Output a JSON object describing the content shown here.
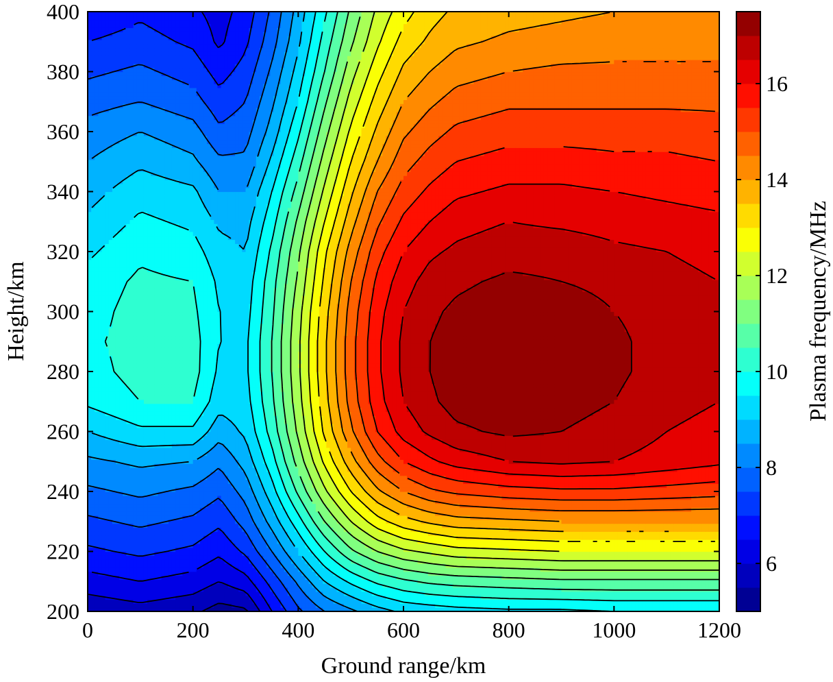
{
  "chart_data": {
    "type": "heatmap",
    "subtype": "filled contour",
    "xlabel": "Ground range/km",
    "ylabel": "Height/km",
    "colorbar_label": "Plasma frequency/MHz",
    "xlim": [
      0,
      1200
    ],
    "ylim": [
      200,
      400
    ],
    "clim": [
      5,
      17.5
    ],
    "x_ticks": [
      "0",
      "200",
      "400",
      "600",
      "800",
      "1000",
      "1200"
    ],
    "y_ticks": [
      "200",
      "220",
      "240",
      "260",
      "280",
      "300",
      "320",
      "340",
      "360",
      "380",
      "400"
    ],
    "colorbar_ticks": [
      "6",
      "8",
      "10",
      "12",
      "14",
      "16"
    ],
    "colormap": "jet",
    "contour_lines_color": "#000000",
    "contour_interval_mhz": 0.5,
    "grid": false,
    "features": {
      "peak": {
        "x": 870,
        "y": 290,
        "value": 17.3
      },
      "low_at_top_near_x250": {
        "x": 250,
        "y": 392,
        "value": 6.3
      },
      "low_at_bottom_near_x250": {
        "x": 280,
        "y": 201,
        "value": 5.3
      },
      "local_max_left": {
        "x": 120,
        "y": 292,
        "value": 10.2
      },
      "saddle": {
        "x": 250,
        "y": 285,
        "value": 9.4
      }
    },
    "grid_x": [
      0,
      100,
      200,
      250,
      300,
      350,
      400,
      450,
      500,
      550,
      600,
      650,
      700,
      800,
      900,
      1000,
      1100,
      1200
    ],
    "grid_y": [
      200,
      210,
      220,
      230,
      240,
      250,
      260,
      270,
      280,
      290,
      300,
      310,
      320,
      330,
      340,
      350,
      360,
      370,
      380,
      390,
      400
    ],
    "grid_values": [
      [
        5.6,
        5.8,
        5.6,
        5.3,
        5.4,
        6.5,
        7.4,
        8.0,
        8.4,
        8.8,
        9.1,
        9.2,
        9.3,
        9.4,
        9.4,
        9.5,
        9.5,
        9.5
      ],
      [
        6.3,
        6.5,
        6.3,
        6.0,
        6.3,
        7.2,
        8.1,
        9.0,
        9.6,
        10.1,
        10.4,
        10.6,
        10.7,
        10.8,
        10.9,
        10.9,
        10.9,
        10.9
      ],
      [
        6.9,
        7.1,
        6.9,
        6.6,
        7.1,
        8.0,
        9.0,
        10.0,
        10.9,
        11.5,
        11.9,
        12.1,
        12.3,
        12.4,
        12.5,
        12.5,
        12.5,
        12.5
      ],
      [
        7.4,
        7.6,
        7.4,
        7.1,
        7.7,
        8.7,
        9.8,
        11.0,
        12.0,
        12.8,
        13.3,
        13.6,
        13.8,
        13.9,
        14.0,
        14.0,
        14.0,
        14.0
      ],
      [
        7.9,
        8.1,
        7.9,
        7.6,
        8.2,
        9.3,
        10.6,
        11.9,
        13.0,
        13.9,
        14.5,
        14.9,
        15.1,
        15.3,
        15.4,
        15.4,
        15.3,
        15.2
      ],
      [
        8.4,
        8.6,
        8.5,
        8.1,
        8.7,
        9.8,
        11.2,
        12.6,
        13.8,
        14.8,
        15.5,
        15.9,
        16.2,
        16.5,
        16.6,
        16.5,
        16.3,
        16.1
      ],
      [
        9.0,
        9.4,
        9.4,
        8.7,
        9.1,
        10.2,
        11.6,
        13.1,
        14.4,
        15.5,
        16.2,
        16.6,
        16.9,
        17.1,
        17.0,
        16.8,
        16.5,
        16.3
      ],
      [
        9.6,
        10.0,
        10.0,
        9.2,
        9.3,
        10.4,
        11.8,
        13.3,
        14.7,
        15.8,
        16.5,
        16.9,
        17.2,
        17.3,
        17.2,
        17.0,
        16.7,
        16.5
      ],
      [
        9.8,
        10.2,
        10.2,
        9.4,
        9.4,
        10.5,
        11.9,
        13.4,
        14.8,
        15.9,
        16.6,
        17.0,
        17.3,
        17.4,
        17.3,
        17.1,
        16.8,
        16.6
      ],
      [
        9.9,
        10.2,
        10.2,
        9.5,
        9.4,
        10.5,
        11.9,
        13.4,
        14.8,
        15.9,
        16.6,
        17.0,
        17.2,
        17.4,
        17.3,
        17.1,
        16.8,
        16.6
      ],
      [
        9.8,
        10.2,
        10.1,
        9.5,
        9.3,
        10.4,
        11.8,
        13.3,
        14.7,
        15.8,
        16.5,
        16.9,
        17.1,
        17.3,
        17.2,
        17.0,
        16.8,
        16.6
      ],
      [
        9.7,
        10.1,
        10.0,
        9.4,
        9.2,
        10.3,
        11.6,
        13.1,
        14.5,
        15.6,
        16.3,
        16.7,
        16.9,
        17.1,
        17.0,
        16.9,
        16.7,
        16.5
      ],
      [
        9.4,
        9.9,
        9.7,
        9.2,
        9.0,
        10.1,
        11.4,
        12.9,
        14.2,
        15.3,
        16.0,
        16.4,
        16.6,
        16.8,
        16.8,
        16.6,
        16.5,
        16.3
      ],
      [
        9.1,
        9.6,
        9.4,
        8.9,
        8.8,
        9.8,
        11.1,
        12.5,
        13.8,
        14.9,
        15.6,
        16.0,
        16.3,
        16.5,
        16.4,
        16.3,
        16.2,
        16.1
      ],
      [
        8.8,
        9.3,
        9.1,
        8.5,
        8.5,
        9.5,
        10.7,
        12.1,
        13.4,
        14.5,
        15.2,
        15.6,
        15.9,
        16.1,
        16.1,
        16.0,
        15.9,
        15.8
      ],
      [
        8.5,
        8.9,
        8.6,
        8.1,
        8.1,
        9.1,
        10.3,
        11.7,
        13.0,
        14.0,
        14.8,
        15.2,
        15.5,
        15.7,
        15.7,
        15.6,
        15.6,
        15.5
      ],
      [
        8.2,
        8.5,
        8.2,
        7.6,
        7.8,
        8.7,
        9.9,
        11.3,
        12.6,
        13.6,
        14.4,
        14.8,
        15.1,
        15.3,
        15.3,
        15.3,
        15.3,
        15.2
      ],
      [
        7.8,
        8.0,
        7.7,
        7.2,
        7.5,
        8.4,
        9.5,
        10.9,
        12.2,
        13.2,
        14.0,
        14.4,
        14.7,
        14.9,
        14.9,
        14.9,
        14.9,
        14.9
      ],
      [
        7.4,
        7.6,
        7.3,
        6.8,
        7.2,
        8.1,
        9.2,
        10.5,
        11.8,
        12.8,
        13.6,
        14.0,
        14.3,
        14.5,
        14.6,
        14.6,
        14.6,
        14.6
      ],
      [
        7.0,
        7.2,
        6.9,
        6.4,
        6.9,
        7.8,
        8.9,
        10.2,
        11.4,
        12.4,
        13.2,
        13.6,
        13.9,
        14.1,
        14.2,
        14.3,
        14.3,
        14.3
      ],
      [
        6.6,
        6.9,
        6.6,
        6.3,
        6.7,
        7.6,
        8.7,
        9.9,
        11.1,
        12.1,
        12.8,
        13.3,
        13.6,
        13.8,
        13.9,
        14.0,
        14.0,
        14.0
      ]
    ]
  }
}
